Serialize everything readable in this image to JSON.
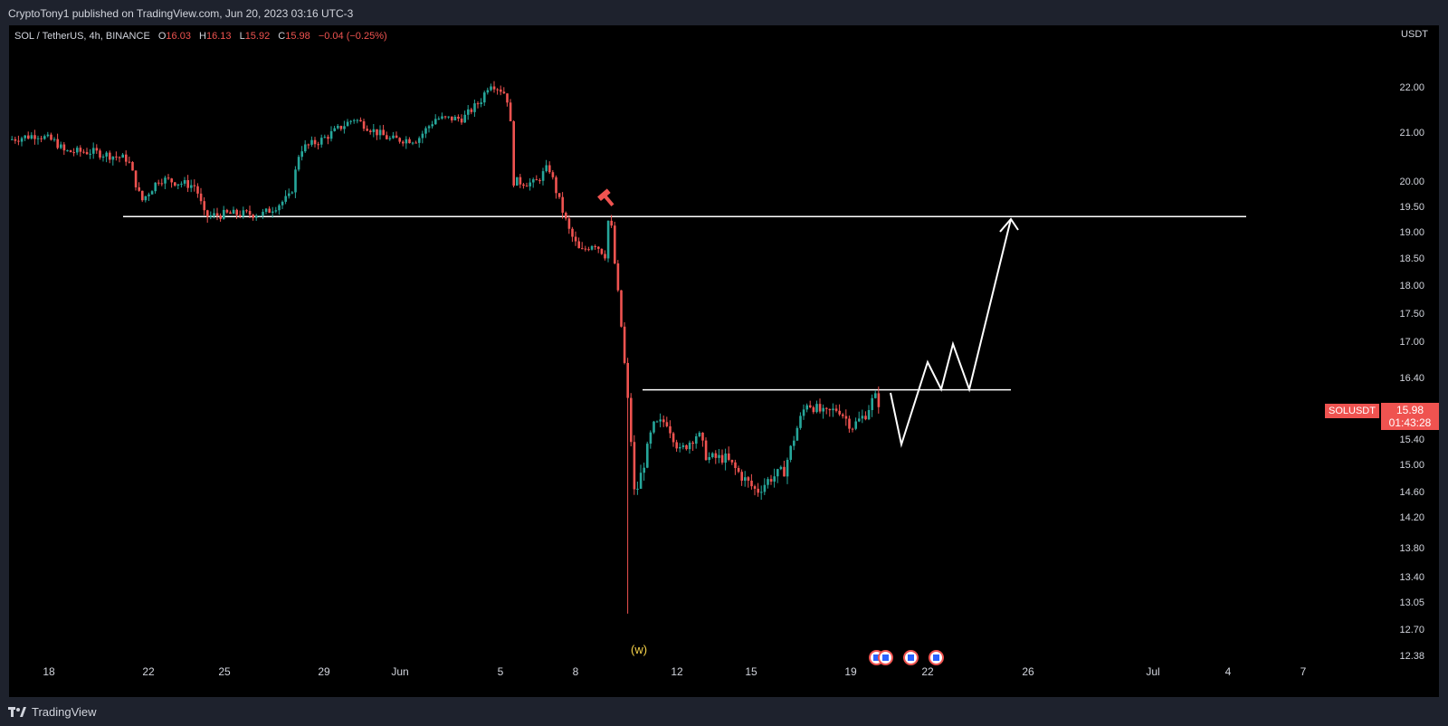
{
  "header": {
    "published": "CryptoTony1 published on TradingView.com, Jun 20, 2023 03:16 UTC-3"
  },
  "legend": {
    "symbol": "SOL / TetherUS, 4h, BINANCE",
    "o_label": "O",
    "o": "16.03",
    "h_label": "H",
    "h": "16.13",
    "l_label": "L",
    "l": "15.92",
    "c_label": "C",
    "c": "15.98",
    "change": "−0.04 (−0.25%)"
  },
  "price_axis": {
    "unit": "USDT",
    "labels": [
      "22.00",
      "21.00",
      "20.00",
      "19.50",
      "19.00",
      "18.50",
      "18.00",
      "17.50",
      "17.00",
      "16.40",
      "15.40",
      "15.00",
      "14.60",
      "14.20",
      "13.80",
      "13.40",
      "13.05",
      "12.70",
      "12.38"
    ]
  },
  "time_axis": {
    "labels": [
      "18",
      "22",
      "25",
      "29",
      "Jun",
      "5",
      "8",
      "12",
      "15",
      "19",
      "22",
      "26",
      "Jul",
      "4",
      "7"
    ]
  },
  "current_price": {
    "symbol": "SOLUSDT",
    "price": "15.98",
    "countdown": "01:43:28"
  },
  "annotations": {
    "wave_label": "(w)",
    "resistance_high": 19.3,
    "resistance_low": 16.2
  },
  "colors": {
    "up": "#26a69a",
    "down": "#ef5350",
    "background": "#000000",
    "frame": "#1e222d",
    "text": "#d1d4dc",
    "accent_wave": "#f7d34a"
  },
  "footer": {
    "brand": "TradingView"
  }
}
